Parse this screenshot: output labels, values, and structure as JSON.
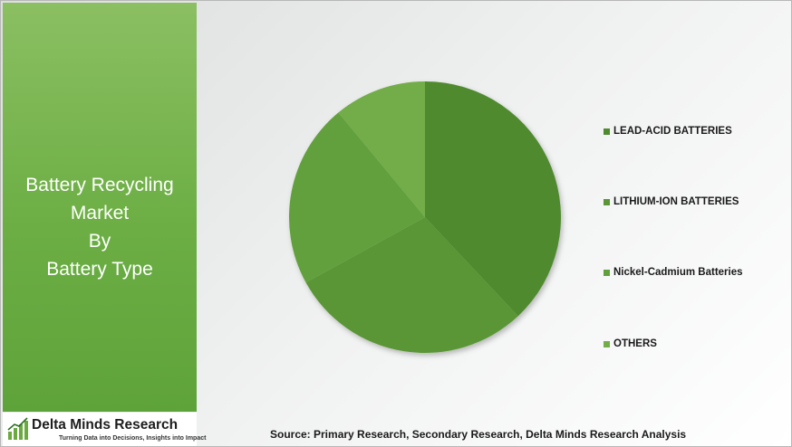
{
  "title_lines": [
    "Battery Recycling",
    "Market",
    "By",
    "Battery Type"
  ],
  "brand": {
    "name": "Delta Minds Research",
    "tagline": "Turning Data into Decisions, Insights into Impact"
  },
  "source": "Source: Primary Research, Secondary Research, Delta Minds Research Analysis",
  "chart_data": {
    "type": "pie",
    "categories": [
      "LEAD-ACID BATTERIES",
      "LITHIUM-ION BATTERIES",
      "Nickel-Cadmium Batteries",
      "OTHERS"
    ],
    "values": [
      38,
      29,
      22,
      11
    ],
    "colors": [
      "#4f8a2f",
      "#5a9636",
      "#62a03e",
      "#72ad48"
    ],
    "legend": "right"
  }
}
